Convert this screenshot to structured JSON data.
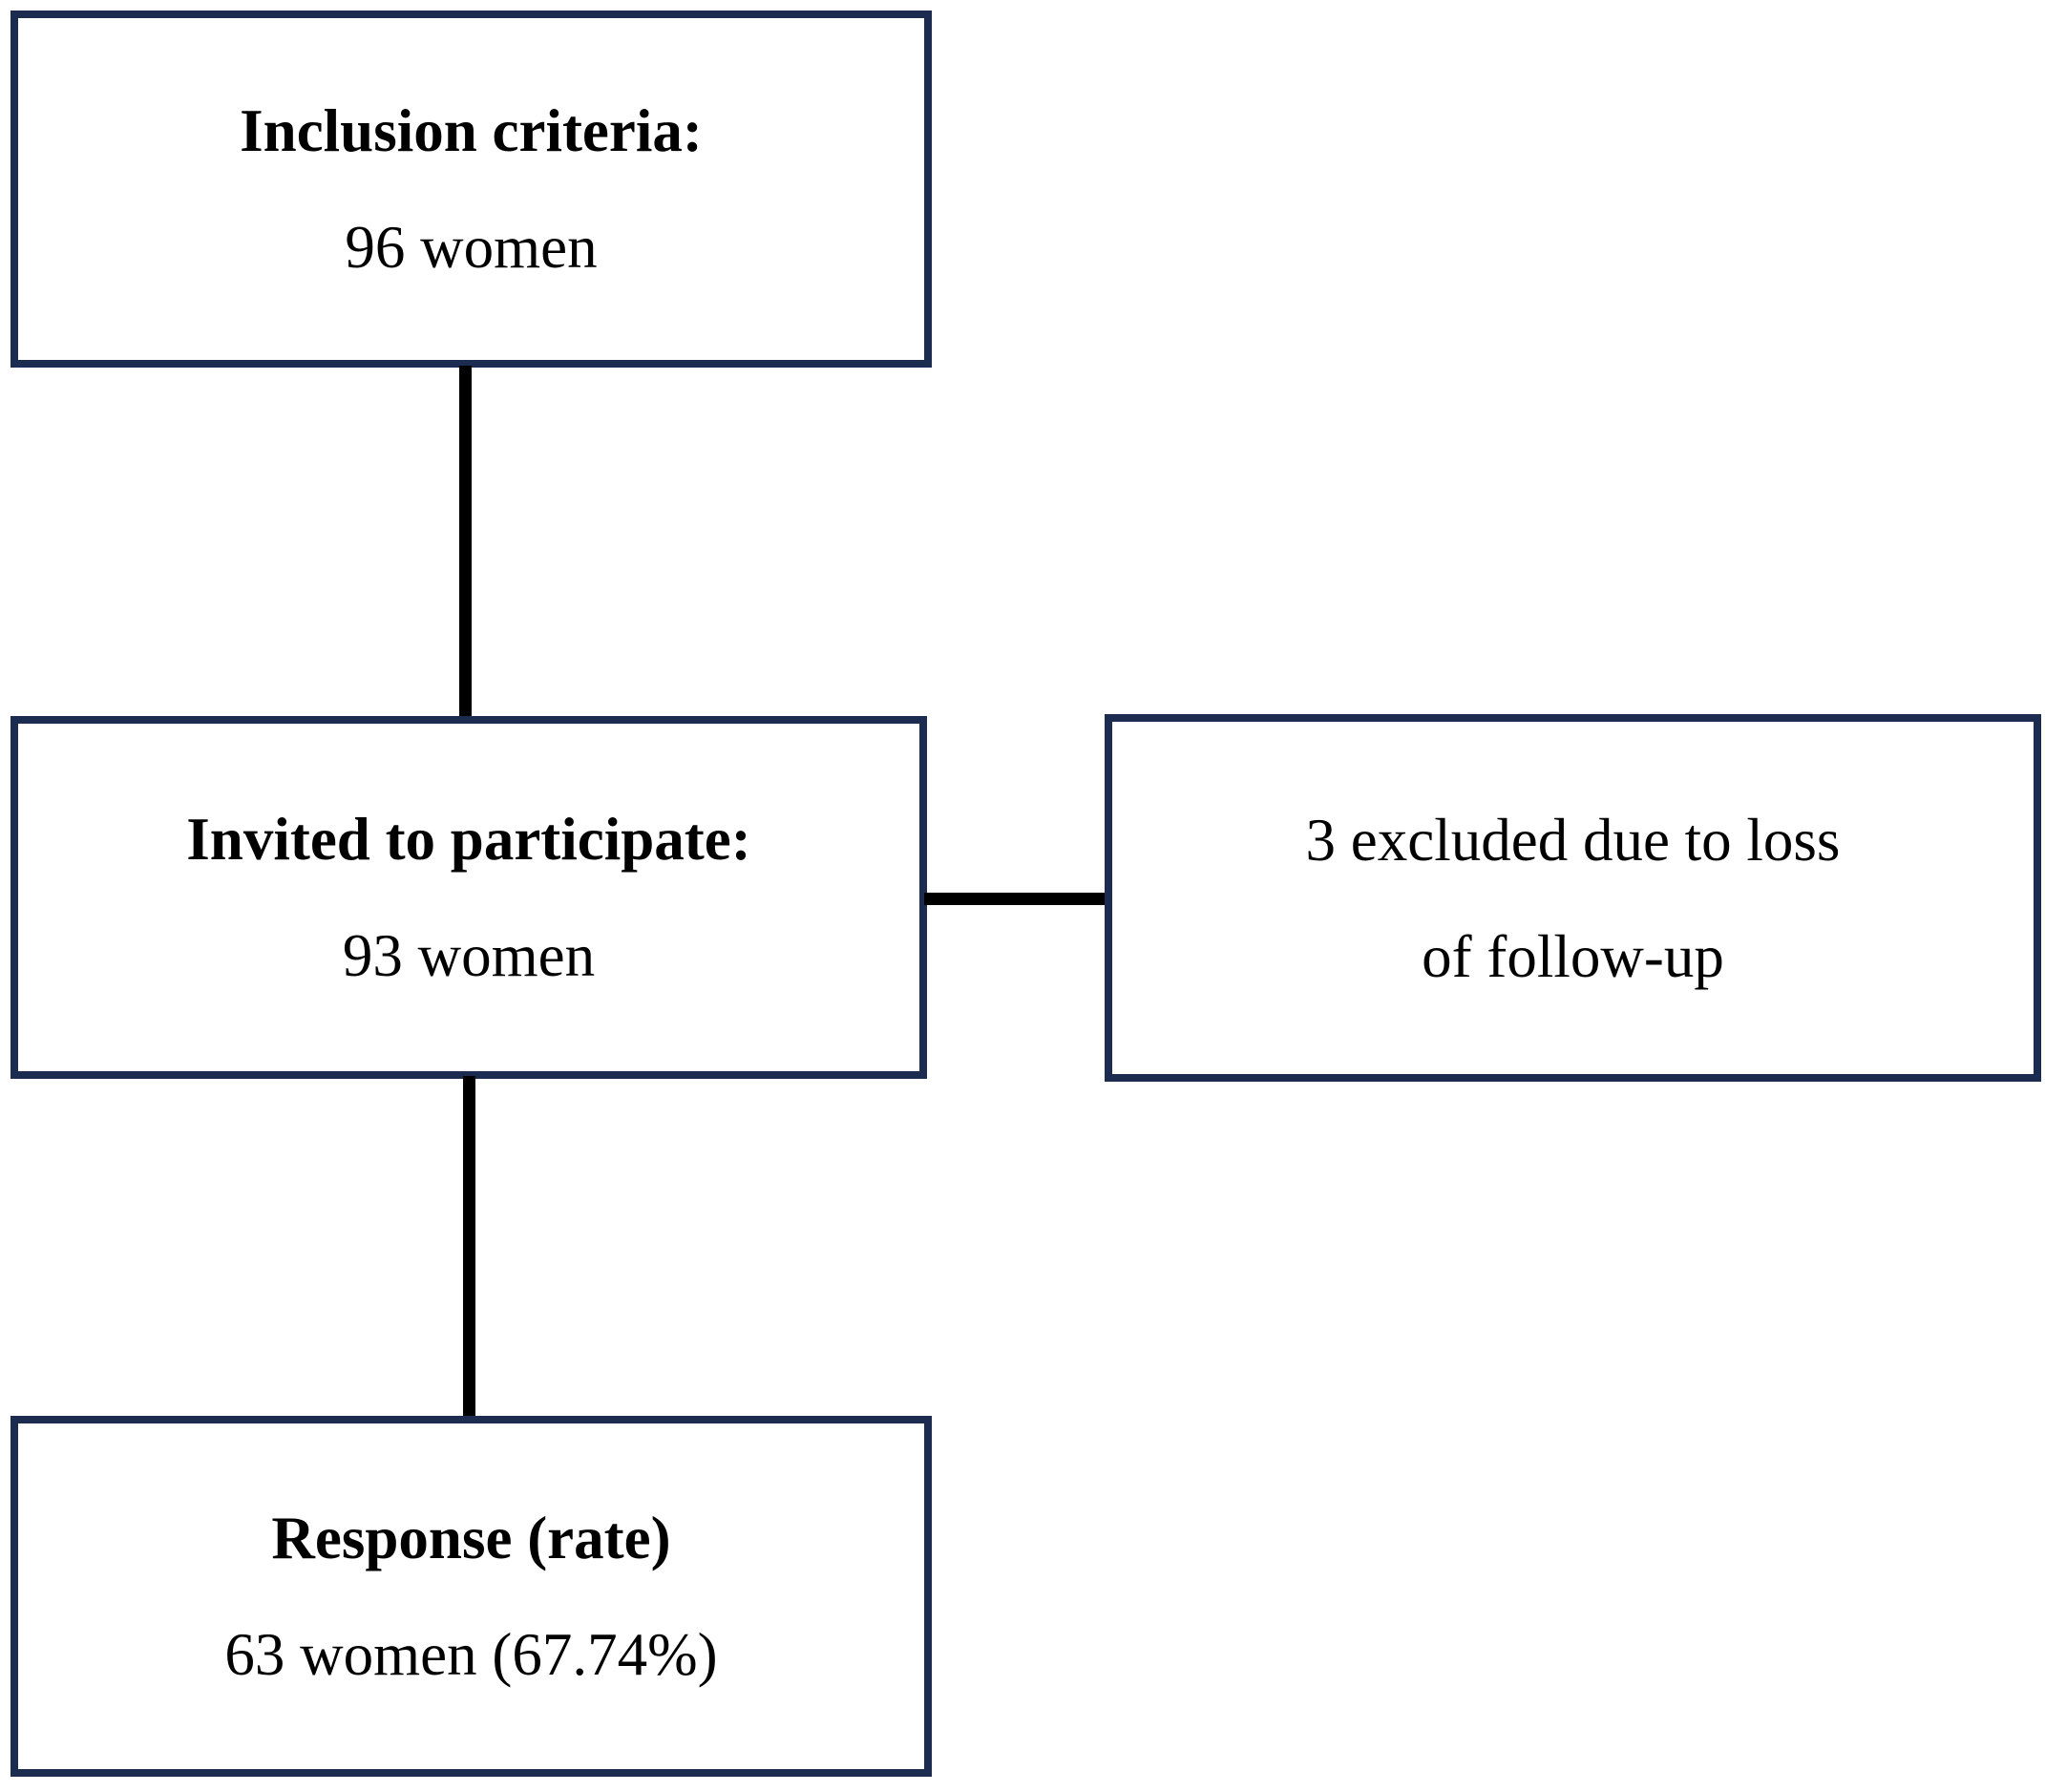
{
  "colors": {
    "box_border": "#1c2c50",
    "connector": "#000000",
    "text": "#000000",
    "background": "#ffffff"
  },
  "diagram": {
    "type": "study-flowchart",
    "boxes": {
      "inclusion": {
        "title": "Inclusion criteria:",
        "value": "96 women"
      },
      "invited": {
        "title": "Invited to participate:",
        "value": "93 women"
      },
      "excluded": {
        "line1": "3 excluded due to loss",
        "line2": "of follow-up"
      },
      "response": {
        "title": "Response (rate)",
        "value": "63 women (67.74%)"
      }
    },
    "connections": [
      "inclusion -> invited (vertical line)",
      "invited -> excluded (horizontal line)",
      "invited -> response (vertical line)"
    ]
  }
}
